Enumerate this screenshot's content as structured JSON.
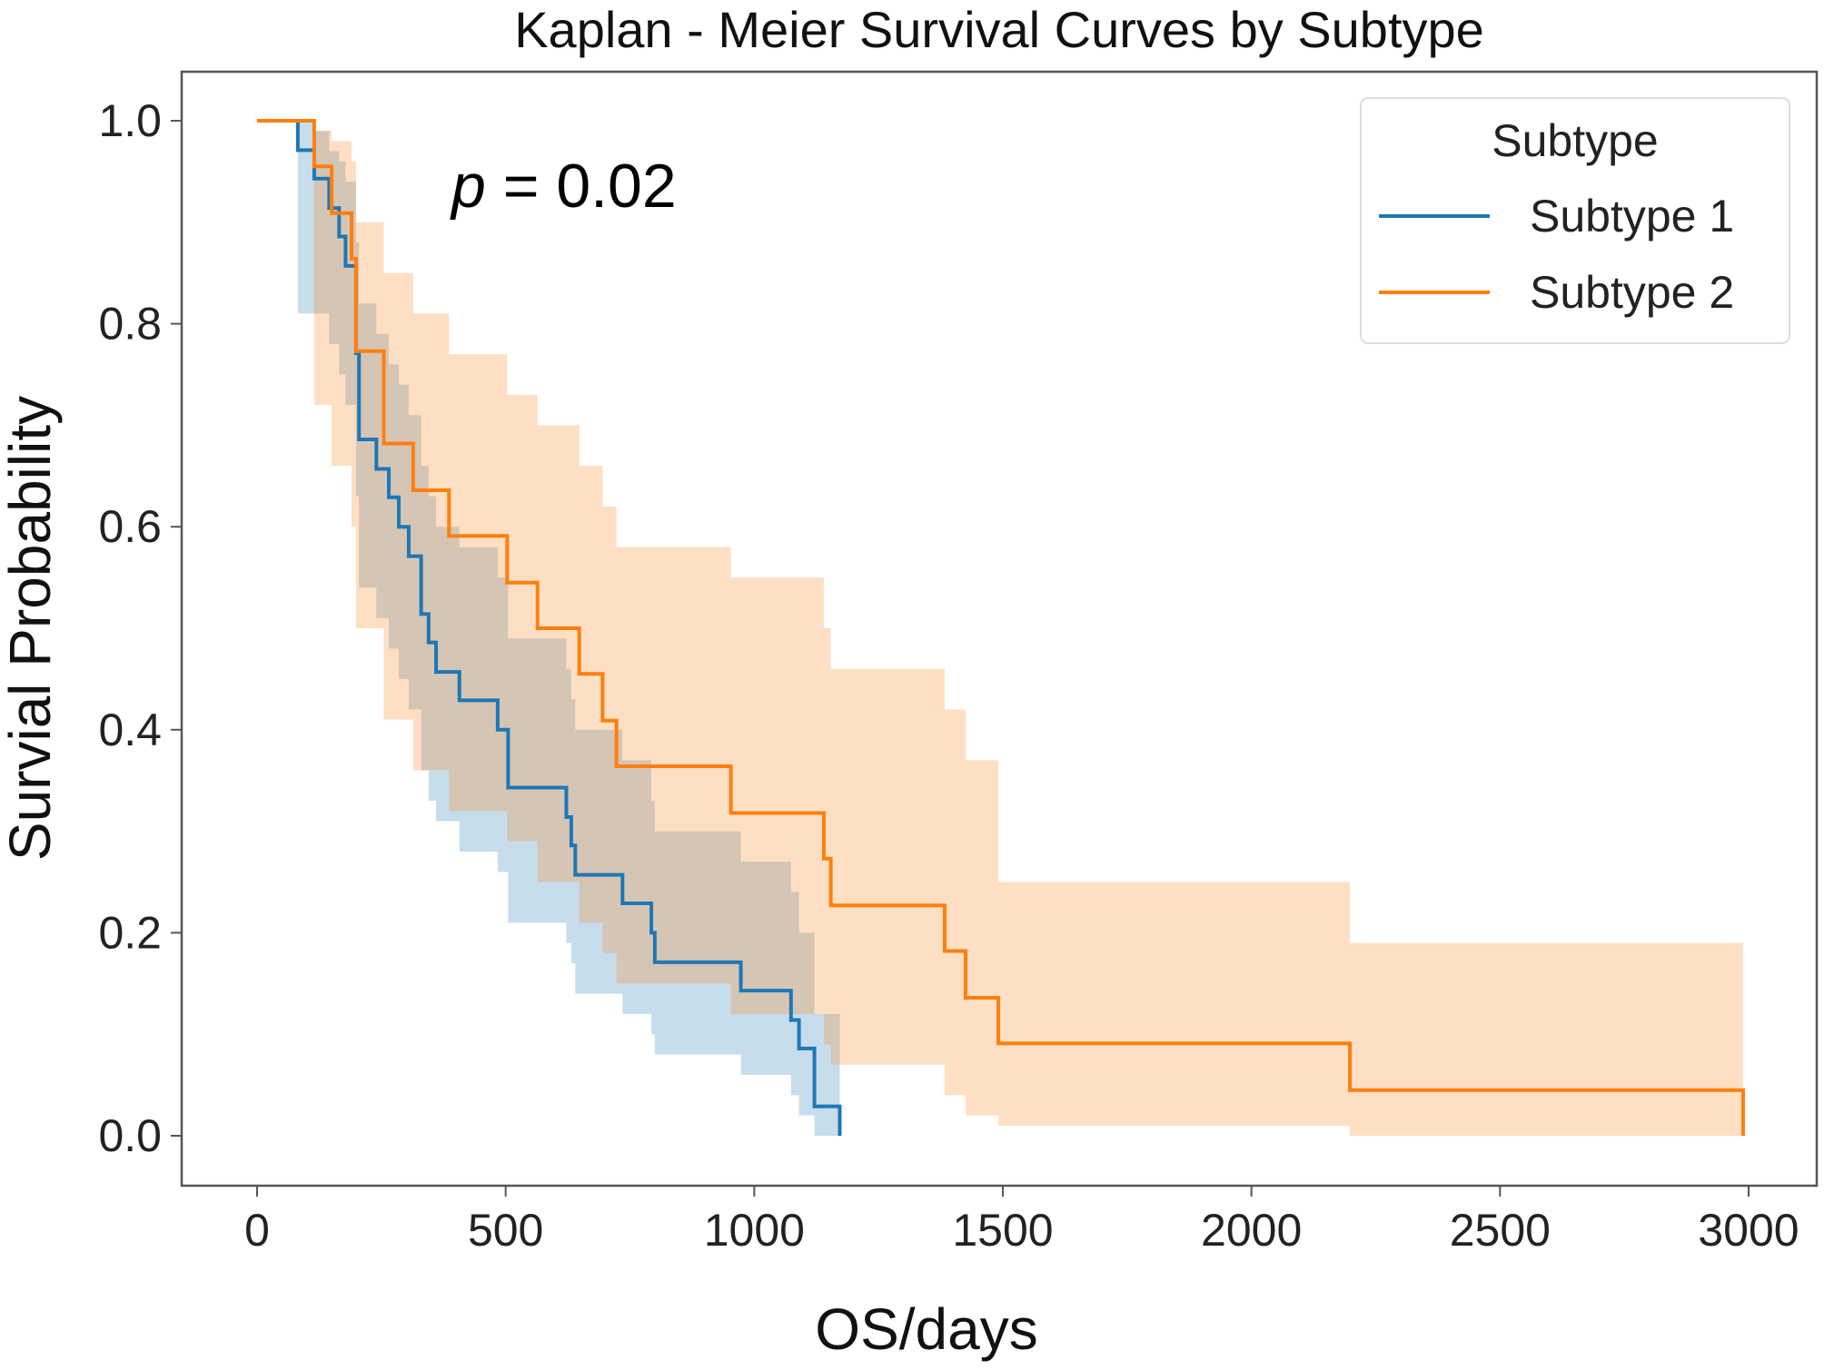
{
  "chart_data": {
    "type": "line",
    "subtype": "kaplan-meier step",
    "title": "Kaplan - Meier Survival Curves by Subtype",
    "xlabel": "OS/days",
    "ylabel": "Survial Probability",
    "xlim": [
      -150,
      3130
    ],
    "ylim": [
      -0.05,
      1.05
    ],
    "xticks": [
      0,
      500,
      1000,
      1500,
      2000,
      2500,
      3000
    ],
    "xtick_labels": [
      "0",
      "500",
      "1000",
      "1500",
      "2000",
      "2500",
      "3000"
    ],
    "yticks": [
      0.0,
      0.2,
      0.4,
      0.6,
      0.8,
      1.0
    ],
    "ytick_labels": [
      "0.0",
      "0.2",
      "0.4",
      "0.6",
      "0.8",
      "1.0"
    ],
    "annotation": {
      "prefix": "p",
      "text": " = 0.02"
    },
    "legend": {
      "title": "Subtype",
      "position": "top-right"
    },
    "grid": false,
    "series": [
      {
        "name": "Subtype 1",
        "color": "#1f77b4",
        "x": [
          0,
          82,
          115,
          145,
          165,
          178,
          199,
          205,
          240,
          265,
          285,
          305,
          330,
          345,
          360,
          407,
          484,
          505,
          622,
          632,
          640,
          735,
          793,
          800,
          973,
          1074,
          1090,
          1121,
          1172
        ],
        "y": [
          1,
          0.971,
          0.943,
          0.914,
          0.886,
          0.857,
          0.771,
          0.686,
          0.657,
          0.629,
          0.6,
          0.571,
          0.514,
          0.486,
          0.457,
          0.429,
          0.4,
          0.343,
          0.314,
          0.286,
          0.257,
          0.229,
          0.2,
          0.171,
          0.143,
          0.114,
          0.086,
          0.029,
          0
        ],
        "ci_lower": [
          1,
          0.81,
          0.81,
          0.78,
          0.75,
          0.72,
          0.63,
          0.54,
          0.51,
          0.48,
          0.45,
          0.42,
          0.36,
          0.33,
          0.31,
          0.28,
          0.26,
          0.21,
          0.19,
          0.17,
          0.14,
          0.12,
          0.1,
          0.08,
          0.06,
          0.04,
          0.02,
          0,
          0
        ],
        "ci_upper": [
          1,
          1,
          0.99,
          0.97,
          0.96,
          0.94,
          0.88,
          0.82,
          0.79,
          0.76,
          0.74,
          0.71,
          0.66,
          0.63,
          0.6,
          0.58,
          0.55,
          0.49,
          0.46,
          0.43,
          0.4,
          0.37,
          0.33,
          0.3,
          0.27,
          0.24,
          0.2,
          0.12,
          0.08
        ]
      },
      {
        "name": "Subtype 2",
        "color": "#ff7f0e",
        "x": [
          0,
          115,
          150,
          190,
          199,
          255,
          314,
          386,
          503,
          564,
          648,
          695,
          723,
          953,
          1140,
          1154,
          1383,
          1425,
          1491,
          2198,
          2989
        ],
        "y": [
          1,
          0.955,
          0.909,
          0.864,
          0.773,
          0.682,
          0.636,
          0.591,
          0.545,
          0.5,
          0.455,
          0.409,
          0.364,
          0.318,
          0.273,
          0.227,
          0.182,
          0.136,
          0.091,
          0.045,
          0
        ],
        "ci_lower": [
          1,
          0.72,
          0.66,
          0.6,
          0.5,
          0.41,
          0.36,
          0.32,
          0.29,
          0.25,
          0.21,
          0.18,
          0.15,
          0.12,
          0.09,
          0.07,
          0.04,
          0.02,
          0.01,
          0,
          0
        ],
        "ci_upper": [
          1,
          0.99,
          0.98,
          0.96,
          0.9,
          0.85,
          0.81,
          0.77,
          0.73,
          0.7,
          0.66,
          0.62,
          0.58,
          0.55,
          0.5,
          0.46,
          0.42,
          0.37,
          0.25,
          0.19,
          0.19
        ]
      }
    ]
  }
}
